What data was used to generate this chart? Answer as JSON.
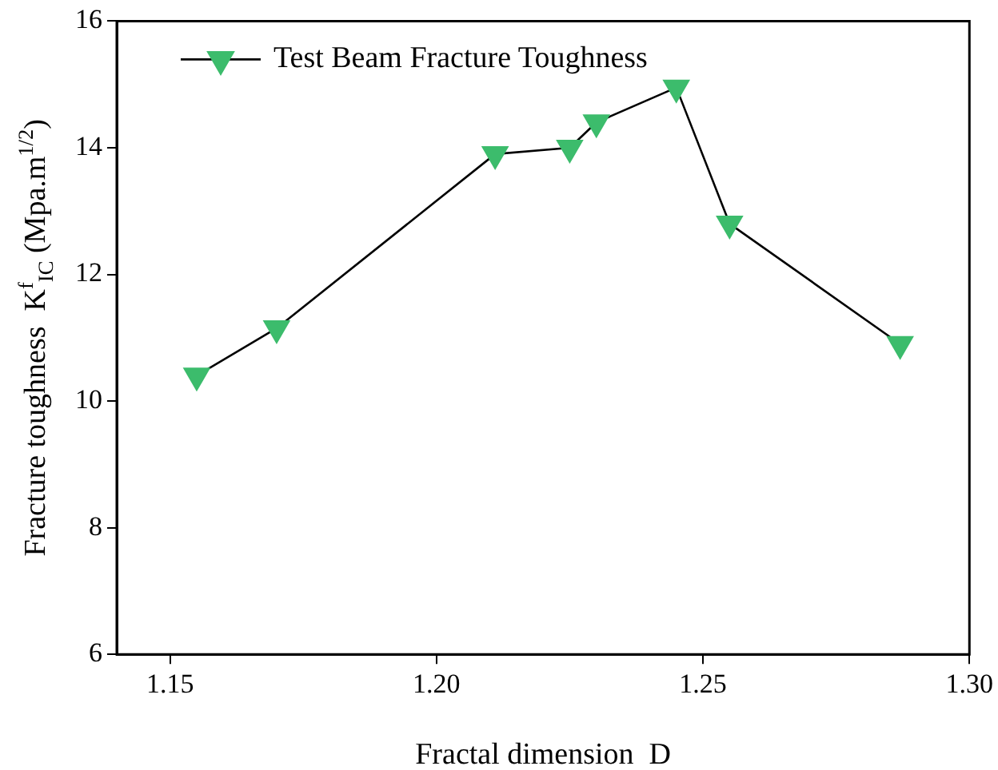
{
  "chart_data": {
    "type": "line",
    "xlabel": "Fractal dimension  D",
    "ylabel": "Fracture toughness  K$^{f}$$_{IC}$ (Mpa.m$^{1/2}$)",
    "series": [
      {
        "name": "Test Beam Fracture Toughness",
        "color": "#3cbc6c",
        "x": [
          1.155,
          1.17,
          1.211,
          1.225,
          1.23,
          1.245,
          1.255,
          1.287
        ],
        "values": [
          10.4,
          11.15,
          13.9,
          14.0,
          14.4,
          14.95,
          12.8,
          10.9
        ]
      }
    ],
    "xlim": [
      1.14,
      1.3
    ],
    "xticks": [
      {
        "value": 1.15,
        "label": "1.15"
      },
      {
        "value": 1.2,
        "label": "1.20"
      },
      {
        "value": 1.25,
        "label": "1.25"
      },
      {
        "value": 1.3,
        "label": "1.30"
      }
    ],
    "ylim": [
      6,
      16
    ],
    "yticks": [
      6,
      8,
      10,
      12,
      14,
      16
    ],
    "grid": false,
    "legend": "top left",
    "marker": "triangle",
    "line_style": "solid"
  }
}
